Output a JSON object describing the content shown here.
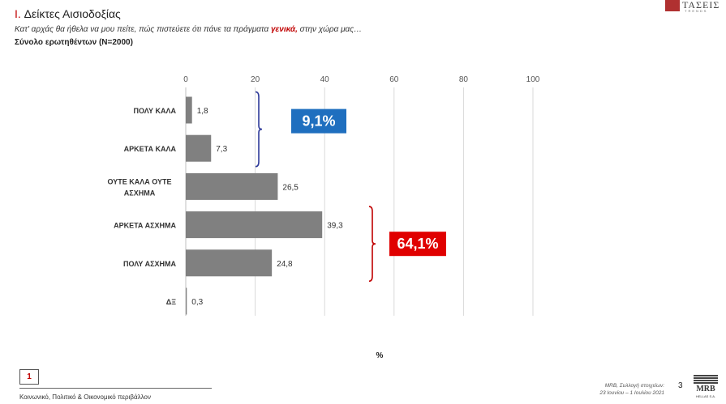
{
  "header": {
    "title_number": "I.",
    "title_text": "Δείκτες Αισιοδοξίας",
    "question_before": "Κατ' αρχάς θα ήθελα να μου πείτε, πώς πιστεύετε ότι πάνε τα πράγματα ",
    "question_highlight": "γενικά,",
    "question_after": " στην χώρα μας…",
    "base": "Σύνολο ερωτηθέντων (N=2000)"
  },
  "logo_top": {
    "name": "ΤΑΣΕΙΣ",
    "tagline": "TRENDS"
  },
  "chart_data": {
    "type": "bar",
    "orientation": "horizontal",
    "categories": [
      "ΠΟΛΥ ΚΑΛΑ",
      "ΑΡΚΕΤΑ ΚΑΛΑ",
      "ΟΥΤΕ ΚΑΛΑ ΟΥΤΕ ΑΣΧΗΜΑ",
      "ΑΡΚΕΤΑ ΑΣΧΗΜΑ",
      "ΠΟΛΥ ΑΣΧΗΜΑ",
      "ΔΞ"
    ],
    "values": [
      1.8,
      7.3,
      26.5,
      39.3,
      24.8,
      0.3
    ],
    "value_labels": [
      "1,8",
      "7,3",
      "26,5",
      "39,3",
      "24,8",
      "0,3"
    ],
    "xticks": [
      "0",
      "20",
      "40",
      "60",
      "80",
      "100"
    ],
    "xlim": [
      0,
      100
    ],
    "xlabel": "%",
    "grid": true,
    "bar_color": "#808080",
    "groups": [
      {
        "label": "9,1%",
        "from": 0,
        "to": 1,
        "color": "#1f6fbf",
        "bracket_color": "#2e3a9a"
      },
      {
        "label": "64,1%",
        "from": 3,
        "to": 4,
        "color": "#e00000",
        "bracket_color": "#c00000"
      }
    ]
  },
  "footer": {
    "page_box": "1",
    "section": "Κοινωνικό, Πολιτικό & Οικονομικό περιβάλλον",
    "source_line1": "MRB, Συλλογή στοιχείων:",
    "source_line2": "23 Ιουνίου – 1 Ιουλίου 2021",
    "page_number": "3",
    "logo_name": "MRB",
    "logo_sub": "HELLAS S.A."
  },
  "colors": {
    "accent": "#c00000",
    "bar": "#808080"
  }
}
